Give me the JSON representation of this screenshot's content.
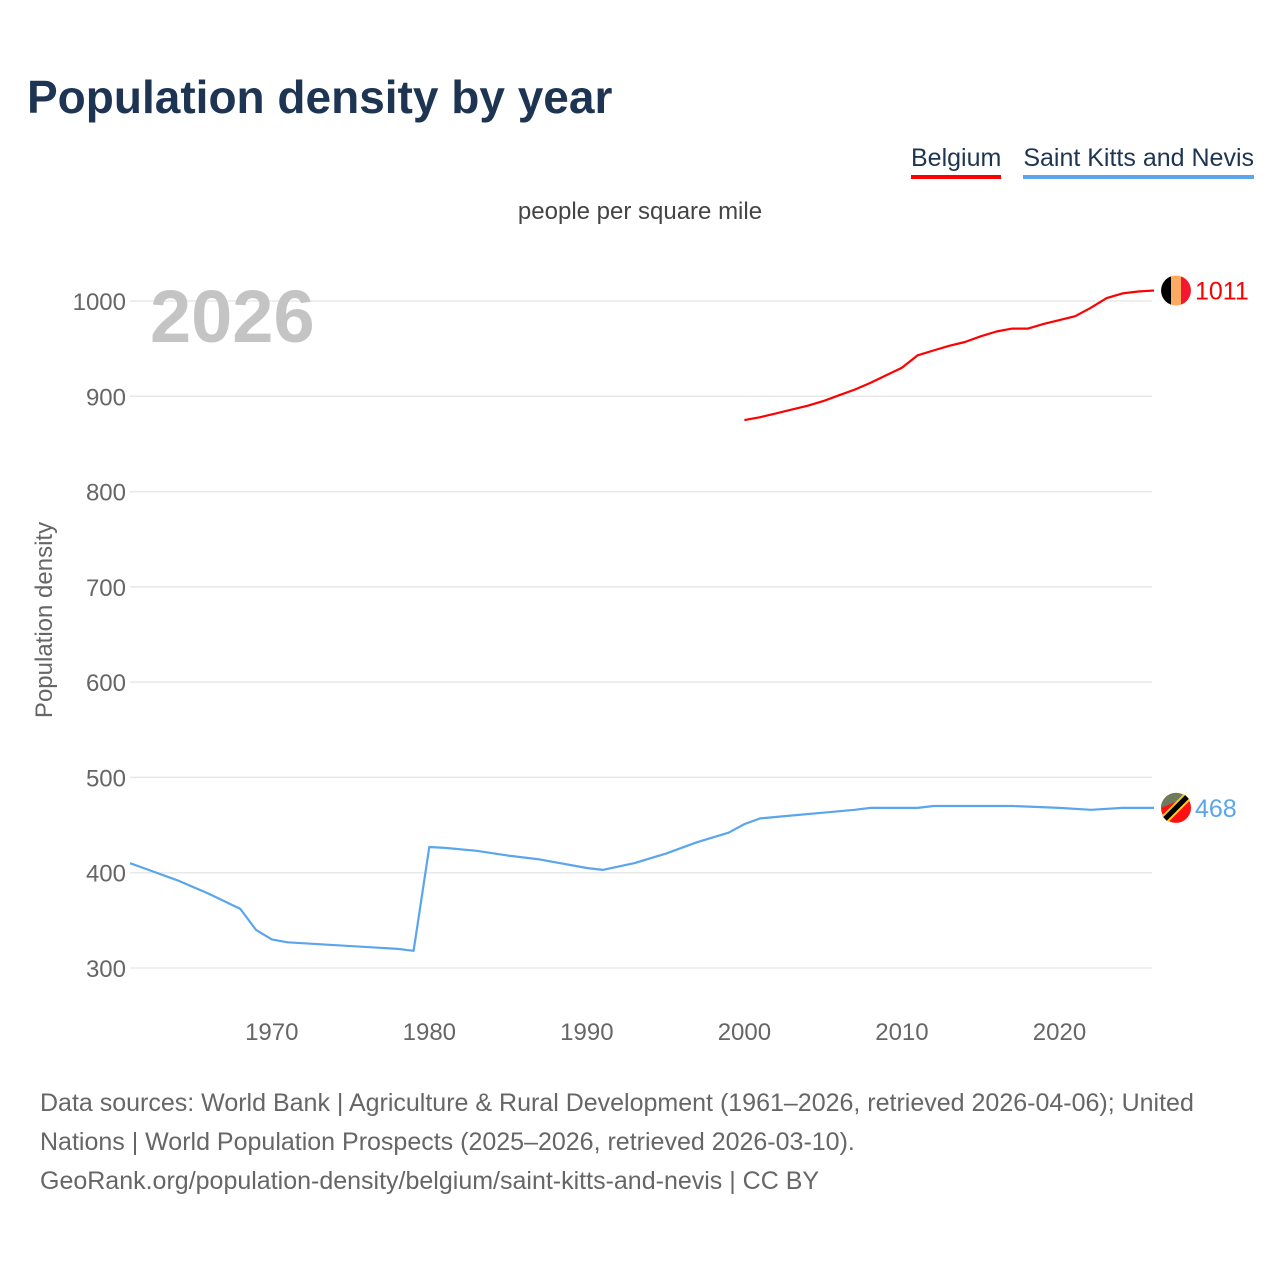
{
  "title": "Population density by year",
  "legend": [
    {
      "label": "Belgium",
      "color": "#ff0000"
    },
    {
      "label": "Saint Kitts and Nevis",
      "color": "#5aa5ec"
    }
  ],
  "year_watermark": "2026",
  "footer": {
    "sources": "Data sources: World Bank | Agriculture & Rural Development (1961–2026, retrieved 2026-04-06); United Nations | World Population Prospects (2025–2026, retrieved 2026-03-10).",
    "attribution": "GeoRank.org/population-density/belgium/saint-kitts-and-nevis | CC BY"
  },
  "chart_data": {
    "type": "line",
    "title": "Population density by year",
    "subtitle": "people per square mile",
    "xlabel": "",
    "ylabel": "Population density",
    "xlim": [
      1961,
      2026
    ],
    "ylim": [
      250,
      1050
    ],
    "x_ticks": [
      1970,
      1980,
      1990,
      2000,
      2010,
      2020
    ],
    "y_ticks": [
      300,
      400,
      500,
      600,
      700,
      800,
      900,
      1000
    ],
    "grid": true,
    "legend_position": "top-right",
    "series": [
      {
        "name": "Belgium",
        "color": "#ff0000",
        "end_label": "1011",
        "x": [
          2000,
          2001,
          2002,
          2003,
          2004,
          2005,
          2006,
          2007,
          2008,
          2009,
          2010,
          2011,
          2012,
          2013,
          2014,
          2015,
          2016,
          2017,
          2018,
          2019,
          2020,
          2021,
          2022,
          2023,
          2024,
          2025,
          2026
        ],
        "y": [
          875,
          878,
          882,
          886,
          890,
          895,
          901,
          907,
          914,
          922,
          930,
          943,
          948,
          953,
          957,
          963,
          968,
          971,
          971,
          976,
          980,
          984,
          993,
          1003,
          1008,
          1010,
          1011
        ]
      },
      {
        "name": "Saint Kitts and Nevis",
        "color": "#5aa5ec",
        "end_label": "468",
        "x": [
          1961,
          1962,
          1964,
          1966,
          1968,
          1969,
          1970,
          1971,
          1978,
          1979,
          1980,
          1981,
          1983,
          1985,
          1987,
          1990,
          1991,
          1993,
          1995,
          1997,
          1999,
          2000,
          2001,
          2003,
          2005,
          2007,
          2008,
          2011,
          2012,
          2017,
          2020,
          2022,
          2024,
          2026
        ],
        "y": [
          410,
          404,
          392,
          378,
          362,
          340,
          330,
          327,
          320,
          318,
          427,
          426,
          423,
          418,
          414,
          405,
          403,
          410,
          420,
          432,
          442,
          451,
          457,
          460,
          463,
          466,
          468,
          468,
          470,
          470,
          468,
          466,
          468,
          468
        ]
      }
    ]
  }
}
